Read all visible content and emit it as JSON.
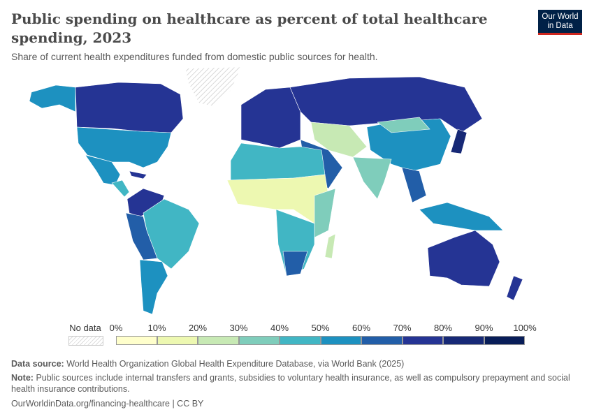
{
  "header": {
    "title": "Public spending on healthcare as percent of total healthcare spending, 2023",
    "subtitle": "Share of current health expenditures funded from domestic public sources for health.",
    "logo": "Our World in Data"
  },
  "legend": {
    "no_data_label": "No data",
    "ticks": [
      "0%",
      "10%",
      "20%",
      "30%",
      "40%",
      "50%",
      "60%",
      "70%",
      "80%",
      "90%",
      "100%"
    ],
    "colors": [
      "#ffffcc",
      "#edf8b1",
      "#c7e9b4",
      "#7fcdbb",
      "#41b6c4",
      "#1d91c0",
      "#225ea8",
      "#253494",
      "#172976",
      "#081d58"
    ],
    "no_data_color": "#e0e0e0"
  },
  "footer": {
    "source_label": "Data source:",
    "source": "World Health Organization Global Health Expenditure Database, via World Bank (2025)",
    "note_label": "Note:",
    "note": "Public sources include internal transfers and grants, subsidies to voluntary health insurance, as well as compulsory prepayment and social health insurance contributions.",
    "url": "OurWorldinData.org/financing-healthcare | CC BY"
  }
}
